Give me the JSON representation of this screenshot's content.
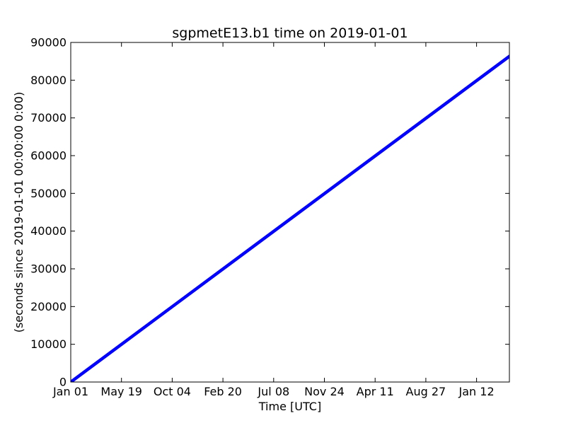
{
  "chart_data": {
    "type": "line",
    "title": "sgpmetE13.b1 time on 2019-01-01",
    "xlabel": "Time [UTC]",
    "ylabel": "(seconds since 2019-01-01 00:00:00 0:00)",
    "x_tick_labels": [
      "Jan 01",
      "May 19",
      "Oct 04",
      "Feb 20",
      "Jul 08",
      "Nov 24",
      "Apr 11",
      "Aug 27",
      "Jan 12"
    ],
    "y_ticks": [
      0,
      10000,
      20000,
      30000,
      40000,
      50000,
      60000,
      70000,
      80000,
      90000
    ],
    "ylim": [
      0,
      90000
    ],
    "grid": false,
    "series": [
      {
        "color": "#0000ff",
        "x_start_tick": "Jan 01",
        "values_start": 0,
        "values_end": 86340
      }
    ]
  }
}
